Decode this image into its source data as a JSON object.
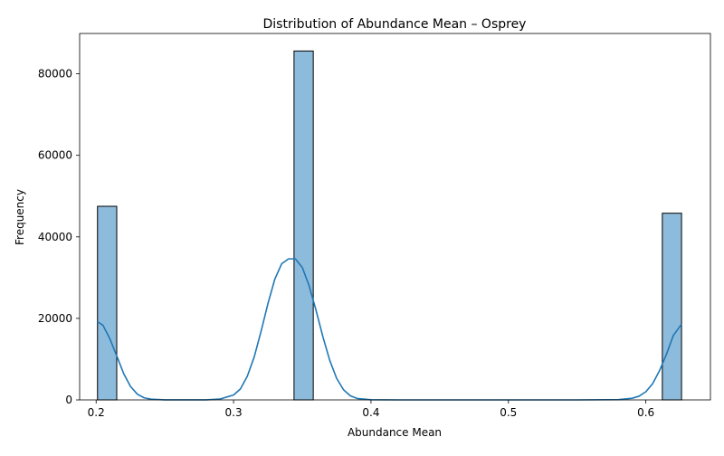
{
  "chart_data": {
    "type": "bar",
    "title": "Distribution of Abundance Mean – Osprey",
    "xlabel": "Abundance Mean",
    "ylabel": "Frequency",
    "xlim": [
      0.188,
      0.647
    ],
    "ylim": [
      0,
      89900
    ],
    "xticks": [
      0.2,
      0.3,
      0.4,
      0.5,
      0.6
    ],
    "xtick_labels": [
      "0.2",
      "0.3",
      "0.4",
      "0.5",
      "0.6"
    ],
    "yticks": [
      0,
      20000,
      40000,
      60000,
      80000
    ],
    "ytick_labels": [
      "0",
      "20000",
      "40000",
      "60000",
      "80000"
    ],
    "grid": false,
    "legend": "none",
    "series": [
      {
        "kind": "histogram",
        "bins": [
          {
            "x0": 0.201,
            "x1": 0.215,
            "value": 47500
          },
          {
            "x0": 0.344,
            "x1": 0.358,
            "value": 85600
          },
          {
            "x0": 0.612,
            "x1": 0.626,
            "value": 45800
          }
        ],
        "color": "#8dbbdc",
        "edge_color": "#000000"
      },
      {
        "kind": "kde",
        "color": "#1f77b4",
        "x": [
          0.201,
          0.205,
          0.21,
          0.215,
          0.22,
          0.225,
          0.23,
          0.235,
          0.24,
          0.25,
          0.26,
          0.27,
          0.28,
          0.29,
          0.3,
          0.305,
          0.31,
          0.315,
          0.32,
          0.325,
          0.33,
          0.335,
          0.34,
          0.345,
          0.35,
          0.355,
          0.36,
          0.365,
          0.37,
          0.375,
          0.38,
          0.385,
          0.39,
          0.4,
          0.42,
          0.45,
          0.5,
          0.55,
          0.58,
          0.59,
          0.595,
          0.6,
          0.605,
          0.61,
          0.615,
          0.62,
          0.626
        ],
        "y": [
          19200,
          18300,
          15000,
          10800,
          6500,
          3300,
          1400,
          500,
          180,
          20,
          5,
          5,
          20,
          200,
          1200,
          2700,
          5800,
          10500,
          16800,
          23600,
          29600,
          33400,
          34600,
          34600,
          32500,
          28000,
          22000,
          15500,
          9700,
          5300,
          2500,
          1000,
          350,
          40,
          0,
          0,
          0,
          0,
          60,
          400,
          900,
          2000,
          4000,
          7200,
          11200,
          15800,
          18600
        ]
      }
    ]
  }
}
